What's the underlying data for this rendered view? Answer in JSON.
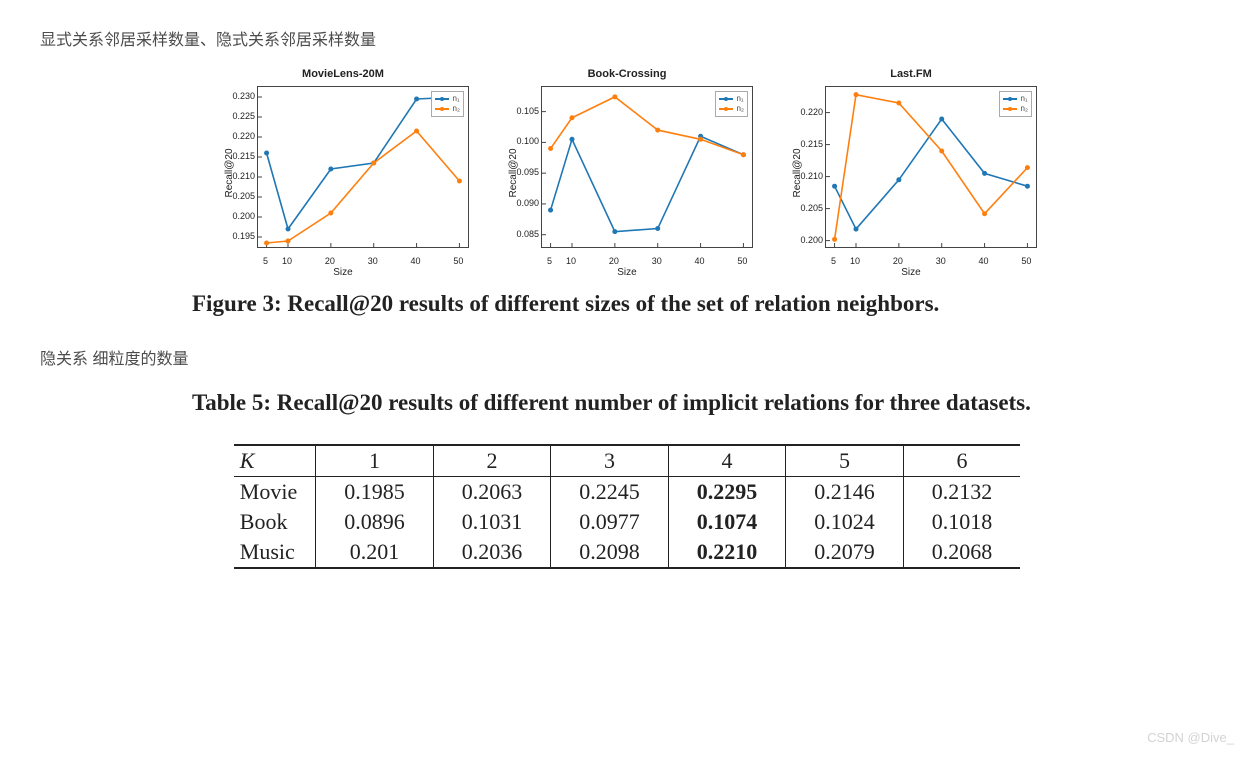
{
  "text1": "显式关系邻居采样数量、隐式关系邻居采样数量",
  "text2": "隐关系 细粒度的数量",
  "figure_caption": "Figure 3: Recall@20 results of different sizes of the set of relation neighbors.",
  "table_caption": "Table 5: Recall@20 results of different number of implicit relations for three datasets.",
  "watermark": "CSDN @Dive_",
  "colors": {
    "series1": "#1f77b4",
    "series2": "#ff7f0e",
    "axis": "#444444",
    "bg": "#ffffff"
  },
  "axis": {
    "xlabel": "Size",
    "ylabel": "Recall@20",
    "xticks": [
      5,
      10,
      20,
      30,
      40,
      50
    ],
    "xrange": [
      3,
      52
    ]
  },
  "legend": {
    "s1": "n₁",
    "s2": "n₂"
  },
  "charts": [
    {
      "title": "MovieLens-20M",
      "yticks": [
        0.195,
        0.2,
        0.205,
        0.21,
        0.215,
        0.22,
        0.225,
        0.23
      ],
      "yrange": [
        0.1925,
        0.2325
      ],
      "s1": [
        [
          5,
          0.216
        ],
        [
          10,
          0.197
        ],
        [
          20,
          0.212
        ],
        [
          30,
          0.2135
        ],
        [
          40,
          0.2295
        ],
        [
          50,
          0.23
        ]
      ],
      "s2": [
        [
          5,
          0.1935
        ],
        [
          10,
          0.194
        ],
        [
          20,
          0.201
        ],
        [
          30,
          0.2135
        ],
        [
          40,
          0.2215
        ],
        [
          50,
          0.209
        ]
      ]
    },
    {
      "title": "Book-Crossing",
      "yticks": [
        0.085,
        0.09,
        0.095,
        0.1,
        0.105
      ],
      "yrange": [
        0.083,
        0.109
      ],
      "s1": [
        [
          5,
          0.089
        ],
        [
          10,
          0.1005
        ],
        [
          20,
          0.0855
        ],
        [
          30,
          0.086
        ],
        [
          40,
          0.101
        ],
        [
          50,
          0.098
        ]
      ],
      "s2": [
        [
          5,
          0.099
        ],
        [
          10,
          0.104
        ],
        [
          20,
          0.1074
        ],
        [
          30,
          0.102
        ],
        [
          40,
          0.1005
        ],
        [
          50,
          0.098
        ]
      ]
    },
    {
      "title": "Last.FM",
      "yticks": [
        0.2,
        0.205,
        0.21,
        0.215,
        0.22
      ],
      "yrange": [
        0.199,
        0.224
      ],
      "s1": [
        [
          5,
          0.2085
        ],
        [
          10,
          0.2018
        ],
        [
          20,
          0.2095
        ],
        [
          30,
          0.219
        ],
        [
          40,
          0.2105
        ],
        [
          50,
          0.2085
        ]
      ],
      "s2": [
        [
          5,
          0.2002
        ],
        [
          10,
          0.2228
        ],
        [
          20,
          0.2215
        ],
        [
          30,
          0.214
        ],
        [
          40,
          0.2042
        ],
        [
          50,
          0.2114
        ]
      ]
    }
  ],
  "table": {
    "header": [
      "K",
      "1",
      "2",
      "3",
      "4",
      "5",
      "6"
    ],
    "rows": [
      {
        "label": "Movie",
        "cells": [
          "0.1985",
          "0.2063",
          "0.2245",
          "0.2295",
          "0.2146",
          "0.2132"
        ],
        "bold_col": 3
      },
      {
        "label": "Book",
        "cells": [
          "0.0896",
          "0.1031",
          "0.0977",
          "0.1074",
          "0.1024",
          "0.1018"
        ],
        "bold_col": 3
      },
      {
        "label": "Music",
        "cells": [
          "0.201",
          "0.2036",
          "0.2098",
          "0.2210",
          "0.2079",
          "0.2068"
        ],
        "bold_col": 3
      }
    ]
  }
}
